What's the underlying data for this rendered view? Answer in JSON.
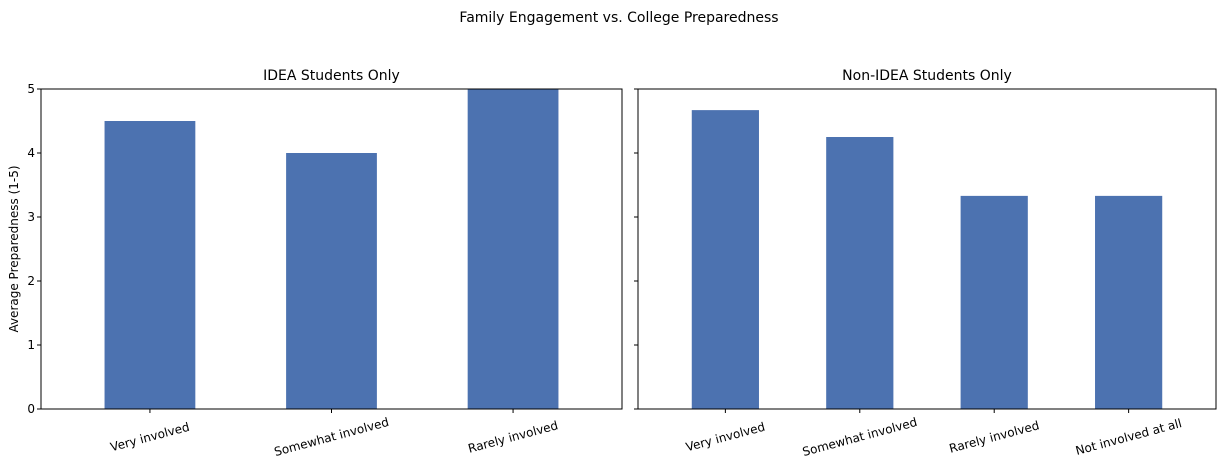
{
  "figure": {
    "title": "Family Engagement vs. College Preparedness"
  },
  "colors": {
    "bar": "#4c72b0",
    "axis": "#000000",
    "background": "#ffffff"
  },
  "chart_data": [
    {
      "type": "bar",
      "title": "IDEA Students Only",
      "xlabel": "",
      "ylabel": "Average Preparedness (1-5)",
      "categories": [
        "Very involved",
        "Somewhat involved",
        "Rarely involved"
      ],
      "values": [
        4.5,
        4.0,
        5.0
      ],
      "ylim": [
        0,
        5
      ],
      "yticks": [
        0,
        1,
        2,
        3,
        4,
        5
      ],
      "grid": false,
      "legend": "none"
    },
    {
      "type": "bar",
      "title": "Non-IDEA Students Only",
      "xlabel": "",
      "ylabel": "",
      "categories": [
        "Very involved",
        "Somewhat involved",
        "Rarely involved",
        "Not involved at all"
      ],
      "values": [
        4.67,
        4.25,
        3.33,
        3.33
      ],
      "ylim": [
        0,
        5
      ],
      "yticks": [
        0,
        1,
        2,
        3,
        4,
        5
      ],
      "grid": false,
      "legend": "none"
    }
  ]
}
